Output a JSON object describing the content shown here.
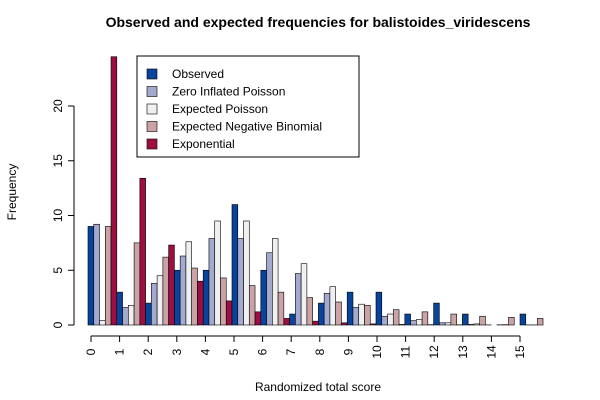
{
  "chart_data": {
    "type": "bar",
    "title": "Observed and expected frequencies for balistoides_viridescens",
    "xlabel": "Randomized total score",
    "ylabel": "Frequency",
    "ylim": [
      0,
      25
    ],
    "yticks": [
      0,
      5,
      10,
      15,
      20
    ],
    "categories": [
      "0",
      "1",
      "2",
      "3",
      "4",
      "5",
      "6",
      "7",
      "8",
      "9",
      "10",
      "11",
      "12",
      "13",
      "14",
      "15"
    ],
    "legend_position": "top",
    "series": [
      {
        "name": "Observed",
        "color": "#08439c",
        "values": [
          9,
          3,
          2,
          5,
          5,
          11,
          5,
          1,
          2,
          3,
          3,
          1,
          2,
          1,
          0,
          1
        ]
      },
      {
        "name": "Zero Inflated Poisson",
        "color": "#a3a9cf",
        "values": [
          9.2,
          1.6,
          3.8,
          6.3,
          7.9,
          7.9,
          6.6,
          4.7,
          2.9,
          1.6,
          0.8,
          0.4,
          0.2,
          0.05,
          0.02,
          0.01
        ]
      },
      {
        "name": "Expected Poisson",
        "color": "#f0f0f0",
        "values": [
          0.4,
          1.8,
          4.5,
          7.6,
          9.5,
          9.5,
          7.9,
          5.6,
          3.5,
          1.9,
          1.0,
          0.5,
          0.2,
          0.1,
          0.03,
          0.01
        ]
      },
      {
        "name": "Expected Negative Binomial",
        "color": "#c9a3a6",
        "values": [
          9.0,
          7.5,
          6.2,
          5.2,
          4.3,
          3.6,
          3.0,
          2.5,
          2.1,
          1.8,
          1.4,
          1.2,
          1.0,
          0.8,
          0.7,
          0.6
        ]
      },
      {
        "name": "Exponential",
        "color": "#9c0f40",
        "values": [
          24.5,
          13.4,
          7.3,
          4.0,
          2.2,
          1.2,
          0.6,
          0.35,
          0.2,
          0.1,
          0.05,
          0.03,
          0.02,
          0.01,
          0.0,
          0.0
        ]
      }
    ]
  }
}
